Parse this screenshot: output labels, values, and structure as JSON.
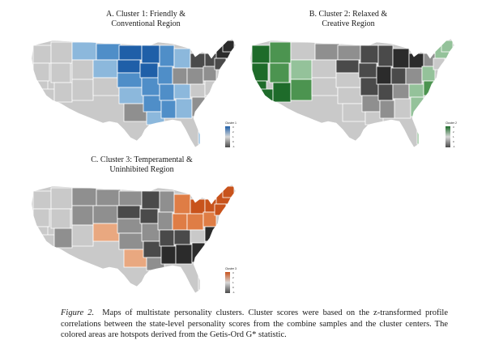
{
  "panels": [
    {
      "id": "A",
      "title_line1": "A. Cluster 1: Friendly &",
      "title_line2": "Conventional Region",
      "legend": {
        "title": "Cluster 1",
        "ticks": [
          "3",
          "2",
          "1",
          "0",
          "-1"
        ],
        "colors": [
          "#1f5fa8",
          "#d8d8d8",
          "#4a4a4a"
        ]
      }
    },
    {
      "id": "B",
      "title_line1": "B. Cluster 2: Relaxed &",
      "title_line2": "Creative Region",
      "legend": {
        "title": "Cluster 2",
        "ticks": [
          "3",
          "2",
          "1",
          "0",
          "-1"
        ],
        "colors": [
          "#1e6b2a",
          "#d8d8d8",
          "#4a4a4a"
        ]
      }
    },
    {
      "id": "C",
      "title_line1": "C. Cluster 3: Temperamental &",
      "title_line2": "Uninhibited Region",
      "legend": {
        "title": "Cluster 3",
        "ticks": [
          "3",
          "2",
          "1",
          "0",
          "-1"
        ],
        "colors": [
          "#c8531c",
          "#d8d8d8",
          "#4a4a4a"
        ]
      }
    }
  ],
  "caption": {
    "label": "Figure 2.",
    "text": "Maps of multistate personality clusters. Cluster scores were based on the z-transformed profile correlations between the state-level personality scores from the combine samples and the cluster centers. The colored areas are hotspots derived from the Getis-Ord G* statistic."
  },
  "colors": {
    "blue_dark": "#1f5fa8",
    "blue_mid": "#4f8ec8",
    "blue_light": "#8cb8dc",
    "green_dark": "#1e6b2a",
    "green_mid": "#4c9450",
    "green_light": "#94c29a",
    "orange_dark": "#c8531c",
    "orange_mid": "#df7d45",
    "orange_light": "#e9a880",
    "gray_light": "#c9c9c9",
    "gray_mid": "#8f8f8f",
    "gray_dark": "#4a4a4a",
    "gray_black": "#2b2b2b"
  }
}
